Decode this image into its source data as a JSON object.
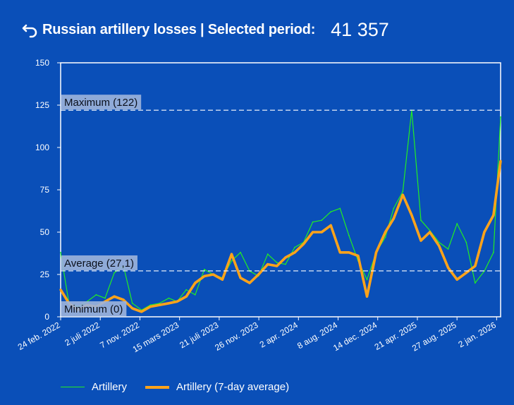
{
  "header": {
    "title": "Russian artillery losses | Selected period:",
    "total": "41 357"
  },
  "colors": {
    "background": "#0a4fb8",
    "raw_line": "#22ee22",
    "avg_line": "#ffa31a",
    "ref_label_bg": "#9db4dc"
  },
  "chart_data": {
    "type": "line",
    "x_start": "2022-02-24",
    "x_end": "2026-03-20",
    "ylim": [
      0,
      150
    ],
    "yticks": [
      0,
      25,
      50,
      75,
      100,
      125,
      150
    ],
    "xticks": [
      "24 feb. 2022",
      "2 juli 2022",
      "7 nov. 2022",
      "15 mars 2023",
      "21 juli 2023",
      "26 nov. 2023",
      "2 apr. 2024",
      "8 aug. 2024",
      "14 dec. 2024",
      "21 apr. 2025",
      "27 aug. 2025",
      "2 jan. 2026"
    ],
    "reference_lines": [
      {
        "label": "Maximum (122)",
        "value": 122
      },
      {
        "label": "Average (27,1)",
        "value": 27.1
      },
      {
        "label": "Minimum (0)",
        "value": 0
      }
    ],
    "series": [
      {
        "name": "Artillery",
        "dates": [
          "2022-02-24",
          "2022-03-24",
          "2022-04-24",
          "2022-05-24",
          "2022-06-24",
          "2022-07-24",
          "2022-08-24",
          "2022-09-24",
          "2022-10-24",
          "2022-11-24",
          "2022-12-24",
          "2023-01-24",
          "2023-02-24",
          "2023-03-24",
          "2023-04-24",
          "2023-05-24",
          "2023-06-24",
          "2023-07-24",
          "2023-08-24",
          "2023-09-24",
          "2023-10-24",
          "2023-11-24",
          "2023-12-24",
          "2024-01-24",
          "2024-02-24",
          "2024-03-24",
          "2024-04-24",
          "2024-05-24",
          "2024-06-24",
          "2024-07-24",
          "2024-08-24",
          "2024-09-24",
          "2024-10-24",
          "2024-11-24",
          "2024-12-24",
          "2025-01-24",
          "2025-02-24",
          "2025-03-24",
          "2025-04-24",
          "2025-05-24",
          "2025-06-24",
          "2025-07-24",
          "2025-08-24",
          "2025-09-24",
          "2025-10-24",
          "2025-11-24",
          "2025-12-24",
          "2026-01-24",
          "2026-02-24",
          "2026-03-20"
        ],
        "values": [
          38,
          8,
          6,
          9,
          13,
          11,
          26,
          30,
          8,
          4,
          7,
          8,
          11,
          9,
          16,
          13,
          28,
          25,
          23,
          33,
          38,
          27,
          24,
          37,
          32,
          31,
          41,
          44,
          56,
          57,
          62,
          64,
          48,
          33,
          22,
          38,
          47,
          64,
          74,
          122,
          57,
          51,
          44,
          40,
          55,
          44,
          20,
          27,
          38,
          118
        ]
      },
      {
        "name": "Artillery (7-day average)",
        "dates": [
          "2022-02-24",
          "2022-03-24",
          "2022-04-24",
          "2022-05-24",
          "2022-06-24",
          "2022-07-24",
          "2022-08-24",
          "2022-09-24",
          "2022-10-24",
          "2022-11-24",
          "2022-12-24",
          "2023-01-24",
          "2023-02-24",
          "2023-03-24",
          "2023-04-24",
          "2023-05-24",
          "2023-06-24",
          "2023-07-24",
          "2023-08-24",
          "2023-09-24",
          "2023-10-24",
          "2023-11-24",
          "2023-12-24",
          "2024-01-24",
          "2024-02-24",
          "2024-03-24",
          "2024-04-24",
          "2024-05-24",
          "2024-06-24",
          "2024-07-24",
          "2024-08-24",
          "2024-09-24",
          "2024-10-24",
          "2024-11-24",
          "2024-12-24",
          "2025-01-24",
          "2025-02-24",
          "2025-03-24",
          "2025-04-24",
          "2025-05-24",
          "2025-06-24",
          "2025-07-24",
          "2025-08-24",
          "2025-09-24",
          "2025-10-24",
          "2025-11-24",
          "2025-12-24",
          "2026-01-24",
          "2026-02-24",
          "2026-03-20"
        ],
        "values": [
          16,
          8,
          4,
          7,
          6,
          9,
          12,
          10,
          5,
          3,
          6,
          7,
          8,
          9,
          12,
          20,
          24,
          25,
          22,
          37,
          23,
          20,
          25,
          31,
          30,
          35,
          38,
          43,
          50,
          50,
          54,
          38,
          38,
          36,
          12,
          38,
          50,
          58,
          72,
          60,
          45,
          50,
          42,
          29,
          22,
          26,
          30,
          50,
          60,
          92
        ]
      }
    ]
  },
  "legend": {
    "raw": "Artillery",
    "avg": "Artillery (7-day average)"
  }
}
